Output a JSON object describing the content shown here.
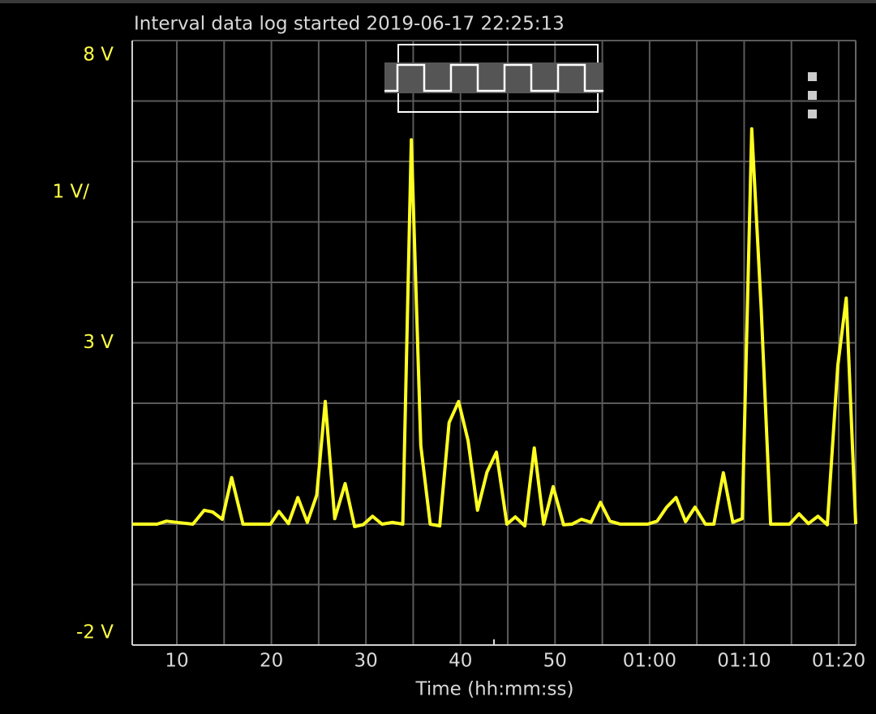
{
  "chart_data": {
    "type": "line",
    "title": "Interval data log started 2019-06-17 22:25:13",
    "x_label": "Time (hh:mm:ss)",
    "scale_label": "1 V/",
    "color": "#ffff22",
    "grid": true,
    "xlim": [
      5.28,
      81.8
    ],
    "xticks": [
      10,
      20,
      30,
      40,
      50,
      {
        "value": 60,
        "label": "01:00"
      },
      {
        "value": 70,
        "label": "01:10"
      },
      {
        "value": 80,
        "label": "01:20"
      }
    ],
    "xminor": [
      15,
      25,
      35,
      45,
      55,
      65,
      75
    ],
    "ylim": [
      -2,
      8
    ],
    "yticks": [
      {
        "value": 8,
        "label": "8 V"
      },
      {
        "value": 3,
        "label": "3 V"
      },
      {
        "value": -2,
        "label": "-2 V"
      }
    ],
    "yminor": [
      7,
      6,
      5,
      4,
      2,
      1,
      0,
      -1
    ],
    "x": [
      5.3,
      7.9,
      8.9,
      10,
      11.7,
      12.9,
      13.8,
      14.8,
      15.8,
      17,
      19.9,
      20.8,
      21.8,
      22.8,
      23.8,
      24.8,
      25.7,
      26.7,
      27.8,
      28.8,
      29.7,
      30.7,
      31.7,
      32.8,
      33.9,
      34.8,
      35.8,
      36.8,
      37.8,
      38.8,
      39.8,
      40.8,
      41.8,
      42.8,
      43.8,
      44.9,
      45.8,
      46.8,
      47.8,
      48.8,
      49.8,
      50.9,
      51.8,
      52.8,
      53.8,
      54.8,
      55.8,
      56.9,
      59.8,
      60.8,
      61.8,
      62.8,
      63.8,
      64.8,
      65.9,
      66.8,
      67.8,
      68.8,
      69.8,
      70.8,
      71.8,
      72.8,
      73.9,
      74.8,
      75.8,
      76.8,
      77.8,
      78.8,
      79.9,
      80.8,
      81.8
    ],
    "values": [
      0,
      0,
      0.05,
      0.03,
      0,
      0.23,
      0.2,
      0.08,
      0.77,
      0,
      0,
      0.21,
      0.01,
      0.44,
      0.03,
      0.48,
      2.03,
      0.09,
      0.67,
      -0.04,
      -0.01,
      0.13,
      0,
      0.03,
      0,
      6.36,
      1.3,
      0,
      -0.03,
      1.68,
      2.03,
      1.38,
      0.23,
      0.86,
      1.19,
      0,
      0.12,
      -0.03,
      1.26,
      0,
      0.62,
      -0.01,
      0,
      0.08,
      0.03,
      0.36,
      0.05,
      0,
      0,
      0.05,
      0.28,
      0.44,
      0.04,
      0.28,
      0,
      0,
      0.85,
      0.03,
      0.09,
      6.54,
      3.58,
      0,
      0,
      0,
      0.17,
      0.01,
      0.13,
      -0.01,
      2.62,
      3.74,
      0
    ]
  }
}
